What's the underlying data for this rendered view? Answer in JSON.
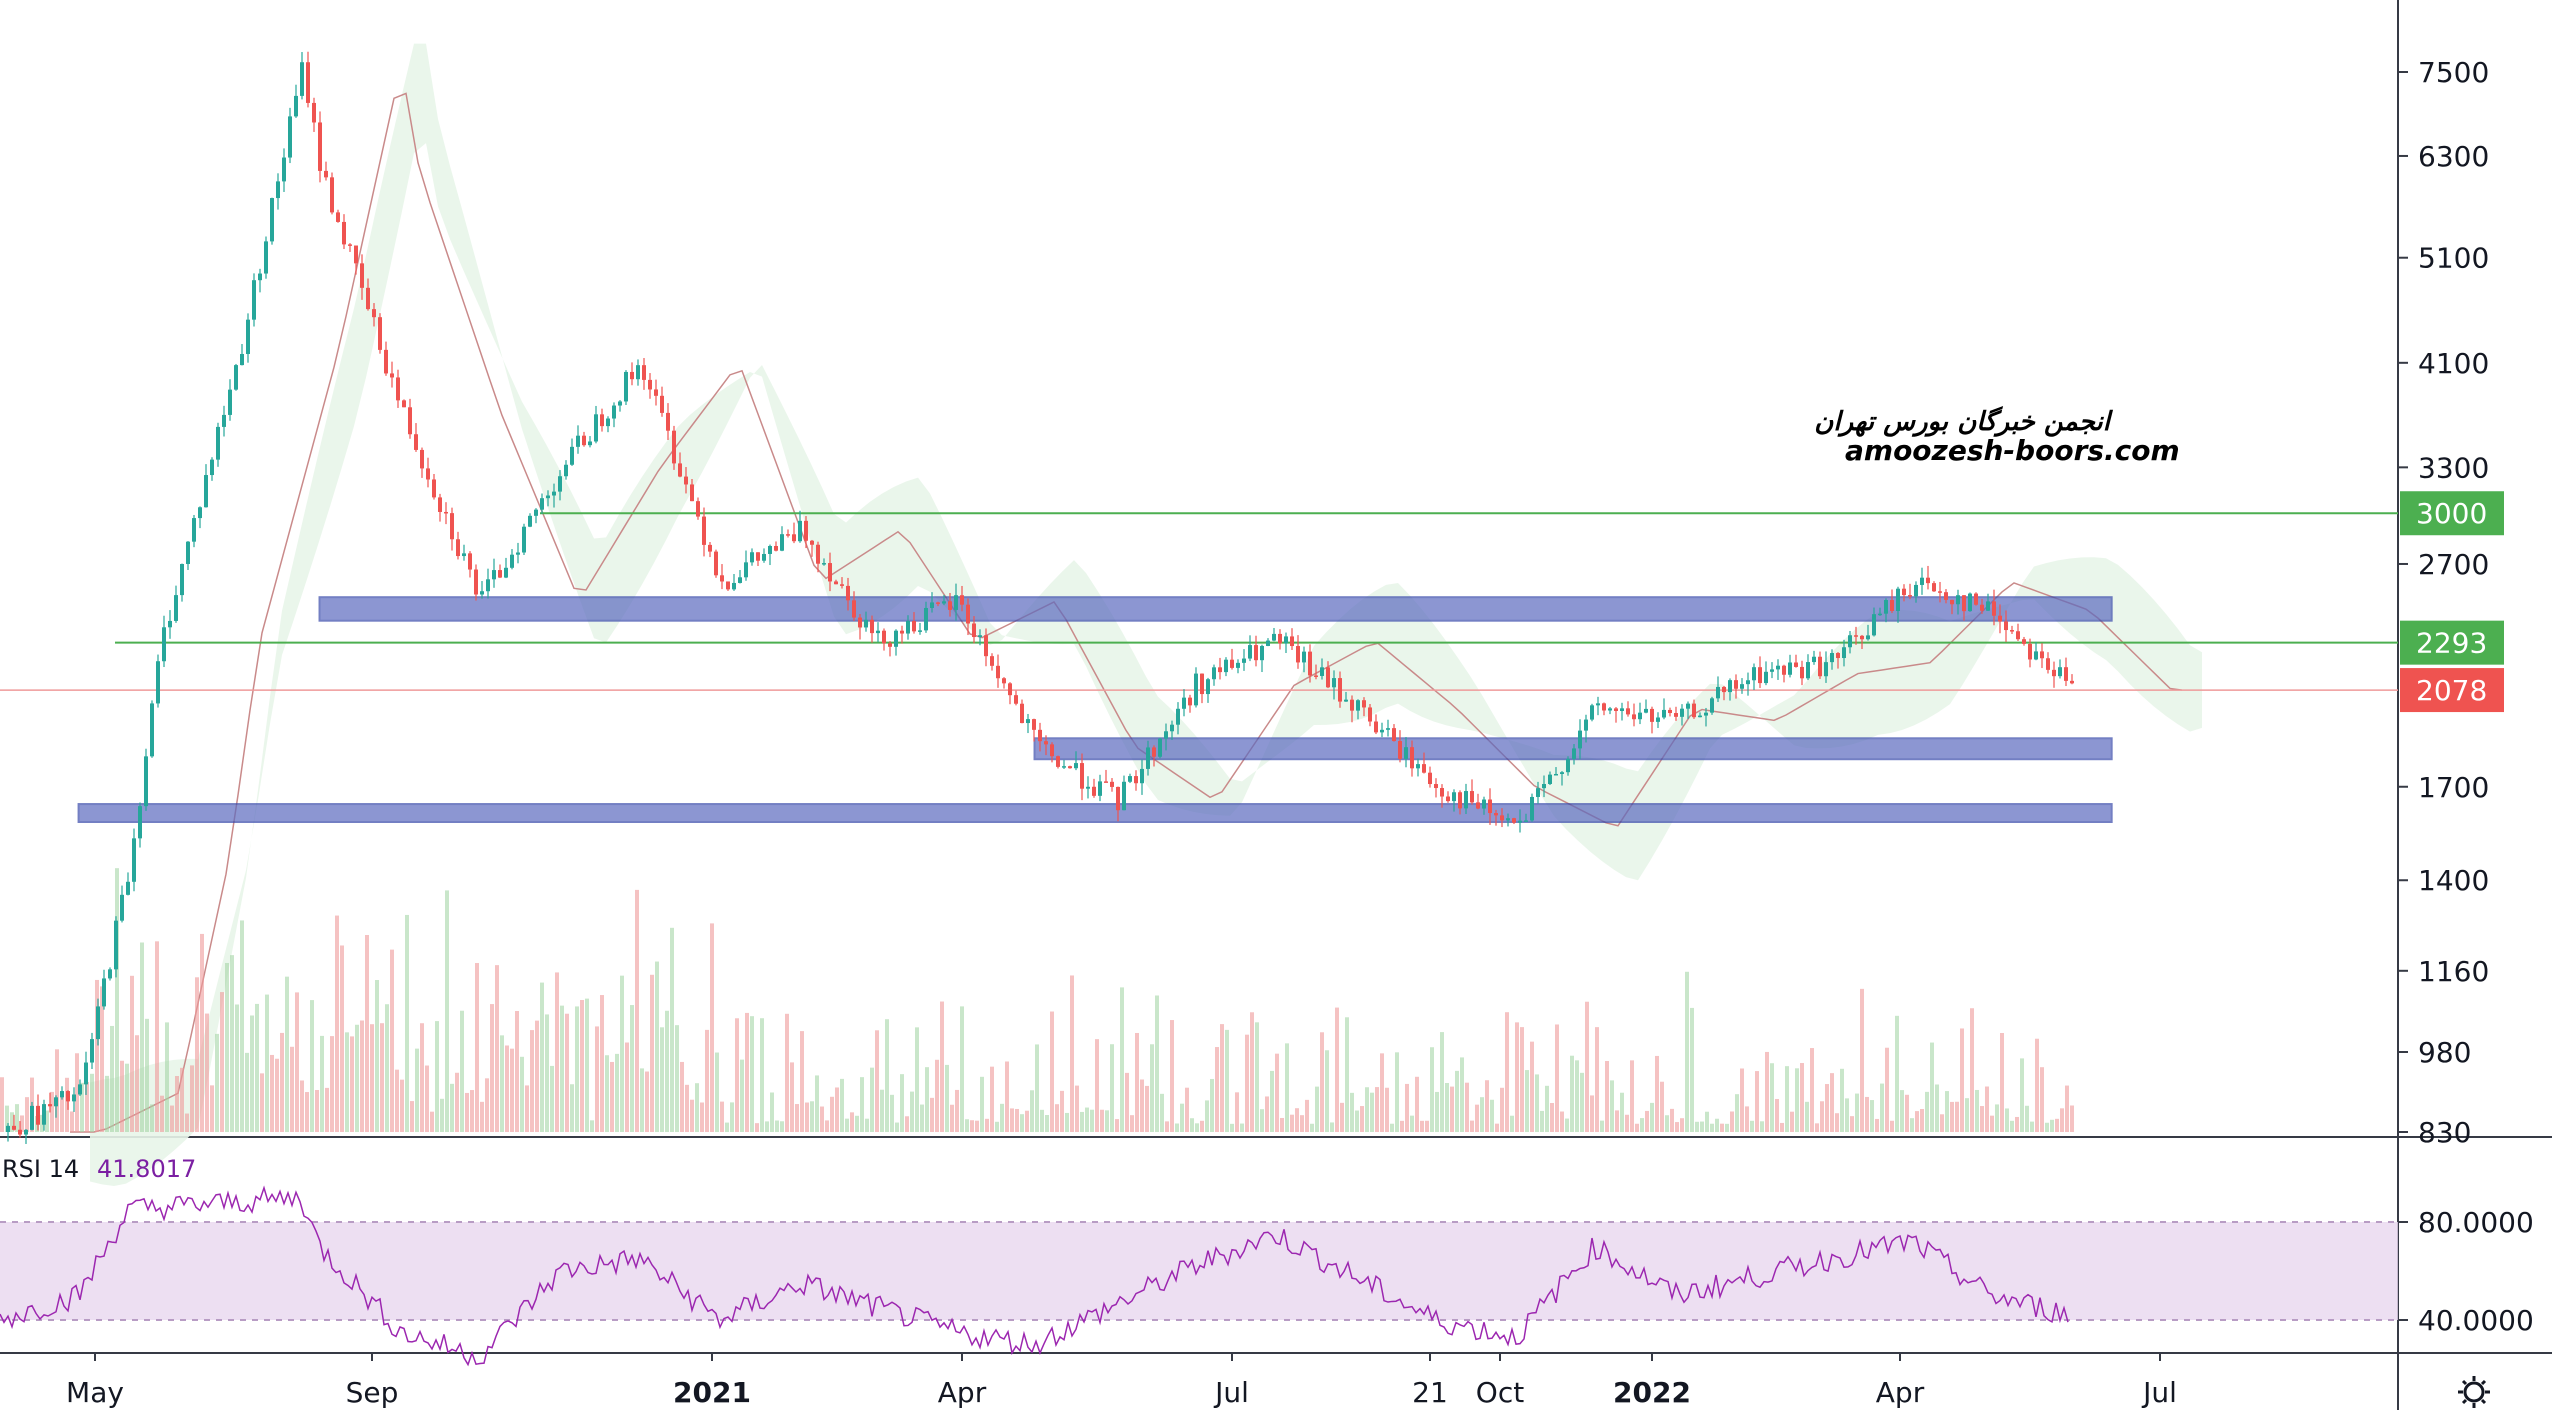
{
  "watermark": {
    "line1": "انجمن خبرگان بورس تهران",
    "line2": "amoozesh-boors.com"
  },
  "price_axis": {
    "ticks": [
      "7500",
      "6300",
      "5100",
      "4100",
      "3300",
      "2700",
      "1700",
      "1400",
      "1160",
      "980",
      "830"
    ],
    "badges": [
      {
        "label": "3000",
        "color": "#4caf50"
      },
      {
        "label": "2293",
        "color": "#4caf50"
      },
      {
        "label": "2078",
        "color": "#ef5350"
      }
    ]
  },
  "rsi": {
    "title": "RSI 14",
    "value": "41.8017",
    "ticks": [
      "80.0000",
      "40.0000"
    ],
    "color": "#9c27b0",
    "band_color": "#e1bee7"
  },
  "time_axis": {
    "labels": [
      "May",
      "Sep",
      "2021",
      "Apr",
      "Jul",
      "21",
      "Oct",
      "2022",
      "Apr",
      "Jul"
    ]
  },
  "colors": {
    "up": "#26a69a",
    "down": "#ef5350",
    "level_line": "#4caf50",
    "zone": "#5c6bc0",
    "current_price_line": "#ef9a9a"
  },
  "chart_data": {
    "type": "candlestick",
    "scale": "log",
    "price_ylim": [
      830,
      8000
    ],
    "rsi_ylim": [
      20,
      100
    ],
    "x_range": [
      "2020-04",
      "2022-07"
    ],
    "horizontal_levels": [
      3000,
      2293
    ],
    "last_price": 2078,
    "support_resistance_zones": [
      {
        "low": 2400,
        "high": 2520,
        "from": "2020-08",
        "to": "2022-06"
      },
      {
        "low": 1800,
        "high": 1880,
        "from": "2021-05",
        "to": "2022-06"
      },
      {
        "low": 1580,
        "high": 1640,
        "from": "2020-05",
        "to": "2022-06"
      }
    ],
    "price_path": [
      {
        "x": "2020-04",
        "y": 830
      },
      {
        "x": "2020-05",
        "y": 900
      },
      {
        "x": "2020-05-20",
        "y": 1450
      },
      {
        "x": "2020-06",
        "y": 2300
      },
      {
        "x": "2020-07",
        "y": 4200
      },
      {
        "x": "2020-07-25",
        "y": 7600
      },
      {
        "x": "2020-08",
        "y": 6100
      },
      {
        "x": "2020-09",
        "y": 3700
      },
      {
        "x": "2020-10",
        "y": 2500
      },
      {
        "x": "2020-11",
        "y": 3300
      },
      {
        "x": "2020-12",
        "y": 4100
      },
      {
        "x": "2021-01",
        "y": 2600
      },
      {
        "x": "2021-02",
        "y": 2900
      },
      {
        "x": "2021-03",
        "y": 2300
      },
      {
        "x": "2021-04",
        "y": 2500
      },
      {
        "x": "2021-05",
        "y": 1850
      },
      {
        "x": "2021-06",
        "y": 1650
      },
      {
        "x": "2021-07",
        "y": 2100
      },
      {
        "x": "2021-08",
        "y": 2300
      },
      {
        "x": "2021-09",
        "y": 2000
      },
      {
        "x": "2021-10",
        "y": 1700
      },
      {
        "x": "2021-11",
        "y": 1560
      },
      {
        "x": "2021-12",
        "y": 2000
      },
      {
        "x": "2022-01",
        "y": 1950
      },
      {
        "x": "2022-02",
        "y": 2150
      },
      {
        "x": "2022-03",
        "y": 2200
      },
      {
        "x": "2022-04",
        "y": 2600
      },
      {
        "x": "2022-05",
        "y": 2450
      },
      {
        "x": "2022-06",
        "y": 2078
      }
    ],
    "rsi_path": [
      {
        "x": "2020-04",
        "y": 40
      },
      {
        "x": "2020-05",
        "y": 50
      },
      {
        "x": "2020-05-20",
        "y": 85
      },
      {
        "x": "2020-07-25",
        "y": 90
      },
      {
        "x": "2020-08",
        "y": 70
      },
      {
        "x": "2020-09",
        "y": 35
      },
      {
        "x": "2020-10",
        "y": 25
      },
      {
        "x": "2020-11",
        "y": 60
      },
      {
        "x": "2020-12",
        "y": 65
      },
      {
        "x": "2021-01",
        "y": 40
      },
      {
        "x": "2021-02",
        "y": 55
      },
      {
        "x": "2021-04",
        "y": 35
      },
      {
        "x": "2021-05",
        "y": 30
      },
      {
        "x": "2021-07",
        "y": 62
      },
      {
        "x": "2021-08",
        "y": 75
      },
      {
        "x": "2021-10",
        "y": 40
      },
      {
        "x": "2021-11",
        "y": 33
      },
      {
        "x": "2021-12",
        "y": 70
      },
      {
        "x": "2022-01",
        "y": 50
      },
      {
        "x": "2022-03",
        "y": 65
      },
      {
        "x": "2022-04",
        "y": 72
      },
      {
        "x": "2022-05",
        "y": 50
      },
      {
        "x": "2022-06",
        "y": 42
      }
    ]
  }
}
